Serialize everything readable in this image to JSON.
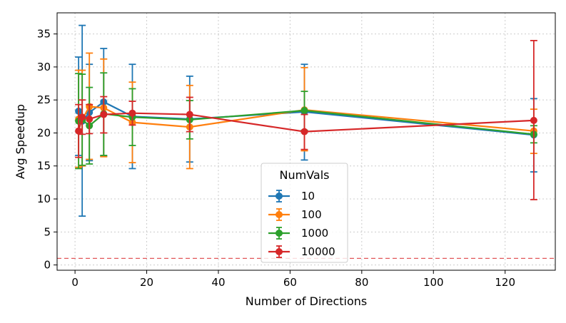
{
  "chart_data": {
    "type": "line",
    "xlabel": "Number of Directions",
    "ylabel": "Avg Speedup",
    "xlim": [
      -5,
      134
    ],
    "ylim": [
      -0.8,
      38.2
    ],
    "xticks": [
      0,
      20,
      40,
      60,
      80,
      100,
      120
    ],
    "yticks": [
      0,
      5,
      10,
      15,
      20,
      25,
      30,
      35
    ],
    "grid": true,
    "legend": {
      "title": "NumVals",
      "placement": "lower center"
    },
    "reference_line": {
      "y": 1,
      "style": "dashed",
      "color": "#e15759"
    },
    "x": [
      1,
      2,
      4,
      8,
      16,
      32,
      64,
      128
    ],
    "series": [
      {
        "name": "10",
        "color": "#1f77b4",
        "values": [
          23.3,
          21.8,
          23.1,
          24.7,
          22.5,
          22.1,
          23.2,
          19.7
        ],
        "err_low": [
          16.6,
          7.4,
          15.8,
          16.5,
          14.6,
          15.6,
          15.9,
          14.1
        ],
        "err_high": [
          31.5,
          36.3,
          30.4,
          32.8,
          30.4,
          28.6,
          30.4,
          25.2
        ]
      },
      {
        "name": "100",
        "color": "#ff7f0e",
        "values": [
          22.1,
          22.0,
          24.0,
          23.8,
          21.6,
          20.9,
          23.5,
          20.3
        ],
        "err_low": [
          14.8,
          15.0,
          16.0,
          16.4,
          15.5,
          14.6,
          17.3,
          16.9
        ],
        "err_high": [
          29.5,
          29.5,
          32.1,
          31.2,
          27.7,
          27.2,
          29.9,
          23.6
        ]
      },
      {
        "name": "1000",
        "color": "#2ca02c",
        "values": [
          21.8,
          22.0,
          21.1,
          22.9,
          22.4,
          22.0,
          23.4,
          19.8
        ],
        "err_low": [
          14.6,
          15.1,
          15.3,
          16.6,
          18.1,
          19.1,
          20.4,
          18.5
        ],
        "err_high": [
          29.0,
          28.9,
          26.9,
          29.1,
          26.7,
          24.9,
          26.3,
          21.1
        ]
      },
      {
        "name": "10000",
        "color": "#d62728",
        "values": [
          20.3,
          22.4,
          22.1,
          22.8,
          23.0,
          22.8,
          20.2,
          21.9
        ],
        "err_low": [
          16.3,
          19.8,
          19.9,
          20.0,
          21.2,
          20.2,
          17.5,
          9.9
        ],
        "err_high": [
          24.3,
          25.0,
          24.3,
          25.5,
          24.8,
          25.4,
          22.8,
          34.0
        ]
      }
    ]
  }
}
